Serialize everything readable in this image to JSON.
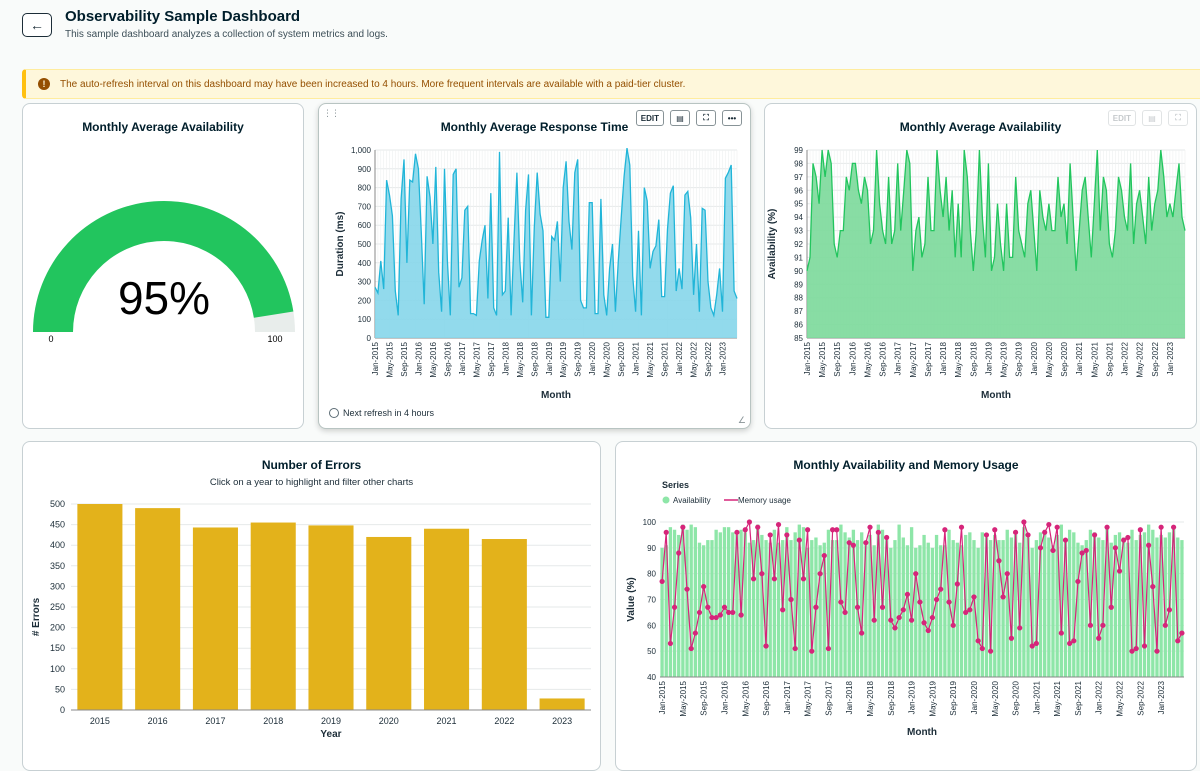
{
  "header": {
    "back_icon": "arrow-left-icon",
    "title": "Observability Sample Dashboard",
    "subtitle": "This sample dashboard analyzes a collection of system metrics and logs."
  },
  "banner": {
    "icon": "warning-icon",
    "text": "The auto-refresh interval on this dashboard may have been increased to 4 hours. More frequent intervals are available with a paid-tier cluster."
  },
  "toolbar": {
    "edit": "EDIT",
    "more": "•••"
  },
  "cards": {
    "gauge": {
      "title": "Monthly Average Availability"
    },
    "response": {
      "title": "Monthly Average Response Time",
      "refresh": "Next refresh in 4 hours"
    },
    "availability": {
      "title": "Monthly Average Availability"
    },
    "errors": {
      "title": "Number of Errors",
      "subtitle": "Click on a year to highlight and filter other charts"
    },
    "combo": {
      "title": "Monthly Availability and Memory Usage"
    }
  },
  "colors": {
    "green": "#22c55e",
    "green_fill": "#7bd99a",
    "blue": "#21b5d8",
    "blue_fill": "#86d6ea",
    "gold": "#e3b21b",
    "magenta": "#d6257a",
    "combo_green": "#8ee6a8"
  },
  "chart_data": [
    {
      "id": "gauge",
      "type": "gauge",
      "value": 95,
      "value_label": "95%",
      "min": 0,
      "max": 100,
      "min_label": "0",
      "max_label": "100"
    },
    {
      "id": "response",
      "type": "area",
      "title": "Monthly Average Response Time",
      "xlabel": "Month",
      "ylabel": "Duration (ms)",
      "ylim": [
        0,
        1000
      ],
      "yticks": [
        "0",
        "100",
        "200",
        "300",
        "400",
        "500",
        "600",
        "700",
        "800",
        "900",
        "1,000"
      ],
      "xticks": [
        "Jan-2015",
        "May-2015",
        "Sep-2015",
        "Jan-2016",
        "May-2016",
        "Sep-2016",
        "Jan-2017",
        "May-2017",
        "Sep-2017",
        "Jan-2018",
        "May-2018",
        "Sep-2018",
        "Jan-2019",
        "May-2019",
        "Sep-2019",
        "Jan-2020",
        "May-2020",
        "Sep-2020",
        "Jan-2021",
        "May-2021",
        "Sep-2021",
        "Jan-2022",
        "May-2022",
        "Sep-2022",
        "Jan-2023"
      ],
      "values": [
        270,
        240,
        410,
        260,
        840,
        760,
        650,
        250,
        120,
        740,
        950,
        400,
        840,
        830,
        980,
        900,
        560,
        180,
        860,
        750,
        500,
        910,
        350,
        140,
        900,
        410,
        120,
        870,
        900,
        270,
        320,
        680,
        700,
        130,
        130,
        120,
        410,
        520,
        600,
        210,
        770,
        160,
        120,
        990,
        230,
        250,
        640,
        120,
        520,
        880,
        410,
        190,
        680,
        870,
        120,
        590,
        880,
        660,
        570,
        110,
        110,
        540,
        520,
        620,
        300,
        800,
        940,
        620,
        470,
        880,
        950,
        200,
        160,
        160,
        720,
        720,
        130,
        130,
        740,
        230,
        120,
        370,
        500,
        140,
        410,
        640,
        860,
        1010,
        920,
        330,
        140,
        570,
        120,
        800,
        730,
        370,
        460,
        490,
        630,
        220,
        220,
        580,
        770,
        810,
        250,
        370,
        260,
        760,
        780,
        640,
        230,
        500,
        140,
        690,
        680,
        300,
        160,
        120,
        230,
        370,
        140,
        850,
        880,
        920,
        250,
        210
      ],
      "series_name": "Duration (ms)"
    },
    {
      "id": "availability",
      "type": "area",
      "title": "Monthly Average Availability",
      "xlabel": "Month",
      "ylabel": "Availability (%)",
      "ylim": [
        85,
        99
      ],
      "yticks": [
        "85",
        "86",
        "87",
        "88",
        "89",
        "90",
        "91",
        "92",
        "93",
        "94",
        "95",
        "96",
        "97",
        "98",
        "99"
      ],
      "xticks": [
        "Jan-2015",
        "May-2015",
        "Sep-2015",
        "Jan-2016",
        "May-2016",
        "Sep-2016",
        "Jan-2017",
        "May-2017",
        "Sep-2017",
        "Jan-2018",
        "May-2018",
        "Sep-2018",
        "Jan-2019",
        "May-2019",
        "Sep-2019",
        "Jan-2020",
        "May-2020",
        "Sep-2020",
        "Jan-2021",
        "May-2021",
        "Sep-2021",
        "Jan-2022",
        "May-2022",
        "Sep-2022",
        "Jan-2023"
      ],
      "values": [
        90,
        91,
        98,
        97,
        95,
        99,
        97,
        99,
        98,
        92,
        91,
        93,
        93,
        97,
        96,
        98,
        98,
        96,
        95,
        97,
        96,
        92,
        93,
        99,
        95,
        93,
        92,
        97,
        92,
        93,
        98,
        93,
        96,
        99,
        98,
        90,
        93,
        94,
        91,
        92,
        97,
        93,
        93,
        99,
        96,
        94,
        97,
        93,
        96,
        91,
        95,
        91,
        99,
        97,
        93,
        90,
        93,
        99,
        94,
        91,
        98,
        90,
        91,
        95,
        92,
        90,
        95,
        91,
        91,
        97,
        93,
        92,
        91,
        95,
        96,
        93,
        90,
        96,
        94,
        93,
        95,
        93,
        93,
        97,
        94,
        95,
        92,
        98,
        94,
        90,
        93,
        96,
        97,
        94,
        91,
        95,
        99,
        93,
        97,
        96,
        92,
        91,
        93,
        97,
        96,
        94,
        93,
        98,
        92,
        95,
        96,
        94,
        92,
        97,
        93,
        95,
        96,
        99,
        97,
        94,
        95,
        94,
        96,
        98,
        94,
        93
      ],
      "series_name": "Availability (%)"
    },
    {
      "id": "errors",
      "type": "bar",
      "title": "Number of Errors",
      "xlabel": "Year",
      "ylabel": "# Errors",
      "ylim": [
        0,
        500
      ],
      "yticks": [
        "0",
        "50",
        "100",
        "150",
        "200",
        "250",
        "300",
        "350",
        "400",
        "450",
        "500"
      ],
      "categories": [
        "2015",
        "2016",
        "2017",
        "2018",
        "2019",
        "2020",
        "2021",
        "2022",
        "2023"
      ],
      "values": [
        500,
        490,
        443,
        455,
        448,
        420,
        440,
        415,
        28
      ]
    },
    {
      "id": "combo",
      "type": "bar+line",
      "title": "Monthly Availability and Memory Usage",
      "xlabel": "Month",
      "ylabel": "Value (%)",
      "ylim": [
        40,
        100
      ],
      "yticks": [
        "40",
        "50",
        "60",
        "70",
        "80",
        "90",
        "100"
      ],
      "xticks": [
        "Jan-2015",
        "May-2015",
        "Sep-2015",
        "Jan-2016",
        "May-2016",
        "Sep-2016",
        "Jan-2017",
        "May-2017",
        "Sep-2017",
        "Jan-2018",
        "May-2018",
        "Sep-2018",
        "Jan-2019",
        "May-2019",
        "Sep-2019",
        "Jan-2020",
        "May-2020",
        "Sep-2020",
        "Jan-2021",
        "May-2021",
        "Sep-2021",
        "Jan-2022",
        "May-2022",
        "Sep-2022",
        "Jan-2023"
      ],
      "legend_title": "Series",
      "series": [
        {
          "name": "Availability",
          "kind": "bar",
          "values": [
            90,
            91,
            98,
            97,
            95,
            99,
            97,
            99,
            98,
            92,
            91,
            93,
            93,
            97,
            96,
            98,
            98,
            96,
            95,
            97,
            96,
            92,
            93,
            99,
            95,
            93,
            92,
            97,
            92,
            93,
            98,
            93,
            96,
            99,
            98,
            90,
            93,
            94,
            91,
            92,
            97,
            93,
            93,
            99,
            96,
            94,
            97,
            93,
            96,
            91,
            95,
            91,
            99,
            97,
            93,
            90,
            93,
            99,
            94,
            91,
            98,
            90,
            91,
            95,
            92,
            90,
            95,
            91,
            91,
            97,
            93,
            92,
            91,
            95,
            96,
            93,
            90,
            96,
            94,
            93,
            95,
            93,
            93,
            97,
            94,
            95,
            92,
            98,
            94,
            90,
            93,
            96,
            97,
            94,
            91,
            95,
            99,
            93,
            97,
            96,
            92,
            91,
            93,
            97,
            96,
            94,
            93,
            98,
            92,
            95,
            96,
            94,
            92,
            97,
            93,
            95,
            96,
            99,
            97,
            94,
            95,
            94,
            96,
            98,
            94,
            93
          ]
        },
        {
          "name": "Memory usage",
          "kind": "line",
          "values": [
            77,
            96,
            53,
            67,
            88,
            98,
            74,
            51,
            57,
            65,
            75,
            67,
            63,
            63,
            64,
            67,
            65,
            65,
            96,
            64,
            97,
            100,
            78,
            98,
            80,
            52,
            95,
            78,
            99,
            66,
            95,
            70,
            51,
            93,
            78,
            97,
            50,
            67,
            80,
            87,
            51,
            97,
            97,
            69,
            65,
            92,
            91,
            67,
            57,
            92,
            98,
            62,
            96,
            67,
            94,
            62,
            59,
            63,
            66,
            72,
            62,
            80,
            69,
            61,
            58,
            63,
            70,
            74,
            97,
            69,
            60,
            76,
            98,
            65,
            66,
            71,
            54,
            51,
            95,
            50,
            97,
            85,
            71,
            80,
            55,
            96,
            59,
            100,
            95,
            52,
            53,
            90,
            96,
            99,
            89,
            98,
            57,
            93,
            53,
            54,
            77,
            88,
            89,
            60,
            95,
            55,
            60,
            98,
            67,
            90,
            81,
            93,
            94,
            50,
            51,
            97,
            52,
            91,
            75,
            50,
            98,
            60,
            66,
            98,
            54,
            57
          ]
        }
      ]
    }
  ]
}
